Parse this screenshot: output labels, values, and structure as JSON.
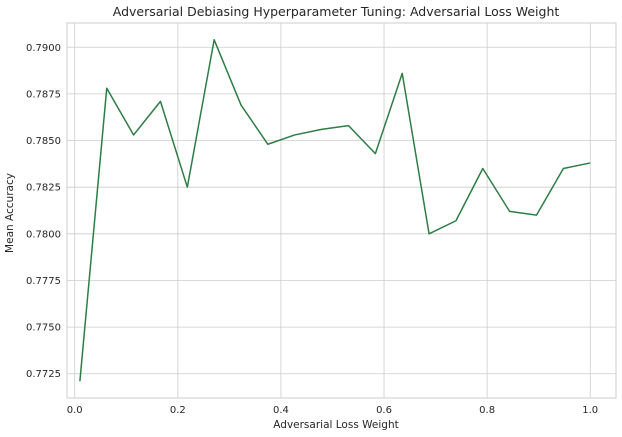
{
  "chart_data": {
    "type": "line",
    "title": "Adversarial Debiasing Hyperparameter Tuning: Adversarial Loss Weight",
    "xlabel": "Adversarial Loss Weight",
    "ylabel": "Mean Accuracy",
    "xlim": [
      -0.015,
      1.05
    ],
    "ylim": [
      0.7712,
      0.7913
    ],
    "xticks": [
      0.0,
      0.2,
      0.4,
      0.6,
      0.8,
      1.0
    ],
    "xtick_labels": [
      "0.0",
      "0.2",
      "0.4",
      "0.6",
      "0.8",
      "1.0"
    ],
    "yticks": [
      0.7725,
      0.775,
      0.7775,
      0.78,
      0.7825,
      0.785,
      0.7875,
      0.79
    ],
    "ytick_labels": [
      "0.7725",
      "0.7750",
      "0.7775",
      "0.7800",
      "0.7825",
      "0.7850",
      "0.7875",
      "0.7900"
    ],
    "grid": true,
    "color": "#2e7d45",
    "series": [
      {
        "x": [
          0.01,
          0.0621,
          0.1142,
          0.1663,
          0.2184,
          0.2705,
          0.3226,
          0.3747,
          0.4268,
          0.4789,
          0.5311,
          0.5832,
          0.6353,
          0.6874,
          0.7395,
          0.7916,
          0.8437,
          0.8958,
          0.9479,
          1.0
        ],
        "values": [
          0.7721,
          0.7878,
          0.7853,
          0.7871,
          0.7825,
          0.7904,
          0.7869,
          0.7848,
          0.7853,
          0.7856,
          0.7858,
          0.7843,
          0.7886,
          0.78,
          0.7807,
          0.7835,
          0.7812,
          0.781,
          0.7835,
          0.7838
        ]
      }
    ]
  }
}
